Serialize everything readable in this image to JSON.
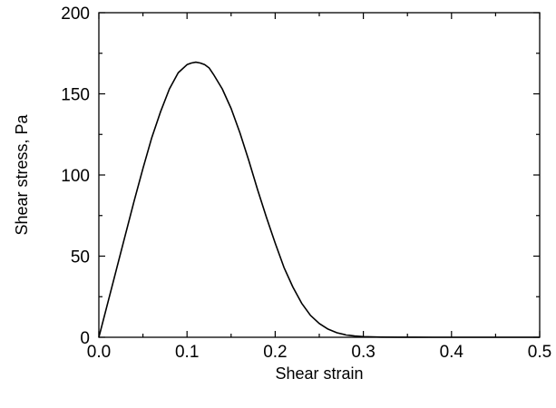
{
  "chart_data": {
    "type": "line",
    "title": "",
    "xlabel": "Shear strain",
    "ylabel": "Shear stress, Pa",
    "xlim": [
      0.0,
      0.5
    ],
    "ylim": [
      0,
      200
    ],
    "x_ticks": [
      0.0,
      0.1,
      0.2,
      0.3,
      0.4,
      0.5
    ],
    "x_tick_labels": [
      "0.0",
      "0.1",
      "0.2",
      "0.3",
      "0.4",
      "0.5"
    ],
    "y_ticks": [
      0,
      50,
      100,
      150,
      200
    ],
    "y_tick_labels": [
      "0",
      "50",
      "100",
      "150",
      "200"
    ],
    "grid": false,
    "legend": "none",
    "series": [
      {
        "color": "#000000",
        "x": [
          0.0,
          0.01,
          0.02,
          0.03,
          0.04,
          0.05,
          0.06,
          0.07,
          0.08,
          0.09,
          0.1,
          0.105,
          0.11,
          0.115,
          0.12,
          0.125,
          0.13,
          0.14,
          0.15,
          0.16,
          0.17,
          0.18,
          0.19,
          0.2,
          0.21,
          0.22,
          0.23,
          0.24,
          0.25,
          0.26,
          0.27,
          0.28,
          0.29,
          0.3,
          0.32,
          0.34,
          0.36,
          0.38,
          0.4,
          0.45,
          0.5
        ],
        "y": [
          0,
          21,
          42,
          63,
          84,
          104,
          123,
          139,
          153,
          163,
          168,
          169,
          169.5,
          169,
          168,
          166,
          162,
          153,
          141,
          126,
          109,
          91,
          74,
          58,
          43,
          31,
          21,
          13.5,
          8.5,
          5,
          2.8,
          1.5,
          0.8,
          0.4,
          0.12,
          0.04,
          0.01,
          0,
          0,
          0,
          0
        ]
      }
    ]
  }
}
